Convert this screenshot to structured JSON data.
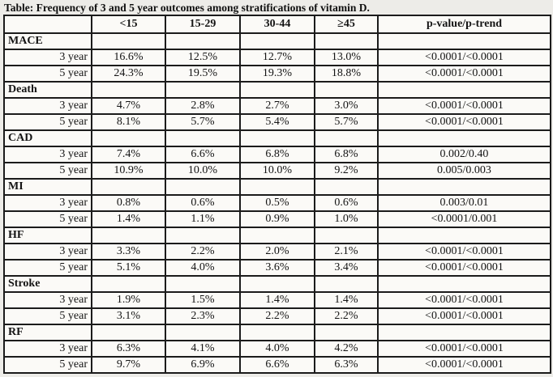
{
  "page": {
    "title": "Table: Frequency of 3 and 5 year outcomes among stratifications of vitamin D."
  },
  "table": {
    "columns": [
      "",
      "<15",
      "15-29",
      "30-44",
      "≥45",
      "p-value/p-trend"
    ],
    "rows": [
      {
        "type": "section",
        "label": "MACE",
        "values": [
          "",
          "",
          "",
          "",
          ""
        ]
      },
      {
        "type": "data",
        "label": "3 year",
        "values": [
          "16.6%",
          "12.5%",
          "12.7%",
          "13.0%",
          "<0.0001/<0.0001"
        ]
      },
      {
        "type": "data",
        "label": "5 year",
        "values": [
          "24.3%",
          "19.5%",
          "19.3%",
          "18.8%",
          "<0.0001/<0.0001"
        ]
      },
      {
        "type": "section",
        "label": "Death",
        "values": [
          "",
          "",
          "",
          "",
          ""
        ]
      },
      {
        "type": "data",
        "label": "3 year",
        "values": [
          "4.7%",
          "2.8%",
          "2.7%",
          "3.0%",
          "<0.0001/<0.0001"
        ]
      },
      {
        "type": "data",
        "label": "5 year",
        "values": [
          "8.1%",
          "5.7%",
          "5.4%",
          "5.7%",
          "<0.0001/<0.0001"
        ]
      },
      {
        "type": "section",
        "label": "CAD",
        "values": [
          "",
          "",
          "",
          "",
          ""
        ]
      },
      {
        "type": "data",
        "label": "3 year",
        "values": [
          "7.4%",
          "6.6%",
          "6.8%",
          "6.8%",
          "0.002/0.40"
        ]
      },
      {
        "type": "data",
        "label": "5 year",
        "values": [
          "10.9%",
          "10.0%",
          "10.0%",
          "9.2%",
          "0.005/0.003"
        ]
      },
      {
        "type": "section",
        "label": "MI",
        "values": [
          "",
          "",
          "",
          "",
          ""
        ]
      },
      {
        "type": "data",
        "label": "3 year",
        "values": [
          "0.8%",
          "0.6%",
          "0.5%",
          "0.6%",
          "0.003/0.01"
        ]
      },
      {
        "type": "data",
        "label": "5 year",
        "values": [
          "1.4%",
          "1.1%",
          "0.9%",
          "1.0%",
          "<0.0001/0.001"
        ]
      },
      {
        "type": "section",
        "label": "HF",
        "values": [
          "",
          "",
          "",
          "",
          ""
        ]
      },
      {
        "type": "data",
        "label": "3 year",
        "values": [
          "3.3%",
          "2.2%",
          "2.0%",
          "2.1%",
          "<0.0001/<0.0001"
        ]
      },
      {
        "type": "data",
        "label": "5 year",
        "values": [
          "5.1%",
          "4.0%",
          "3.6%",
          "3.4%",
          "<0.0001/<0.0001"
        ]
      },
      {
        "type": "section",
        "label": "Stroke",
        "values": [
          "",
          "",
          "",
          "",
          ""
        ]
      },
      {
        "type": "data",
        "label": "3 year",
        "values": [
          "1.9%",
          "1.5%",
          "1.4%",
          "1.4%",
          "<0.0001/<0.0001"
        ]
      },
      {
        "type": "data",
        "label": "5 year",
        "values": [
          "3.1%",
          "2.3%",
          "2.2%",
          "2.2%",
          "<0.0001/<0.0001"
        ]
      },
      {
        "type": "section",
        "label": "RF",
        "values": [
          "",
          "",
          "",
          "",
          ""
        ]
      },
      {
        "type": "data",
        "label": "3 year",
        "values": [
          "6.3%",
          "4.1%",
          "4.0%",
          "4.2%",
          "<0.0001/<0.0001"
        ]
      },
      {
        "type": "data",
        "label": "5 year",
        "values": [
          "9.7%",
          "6.9%",
          "6.6%",
          "6.3%",
          "<0.0001/<0.0001"
        ]
      }
    ]
  }
}
